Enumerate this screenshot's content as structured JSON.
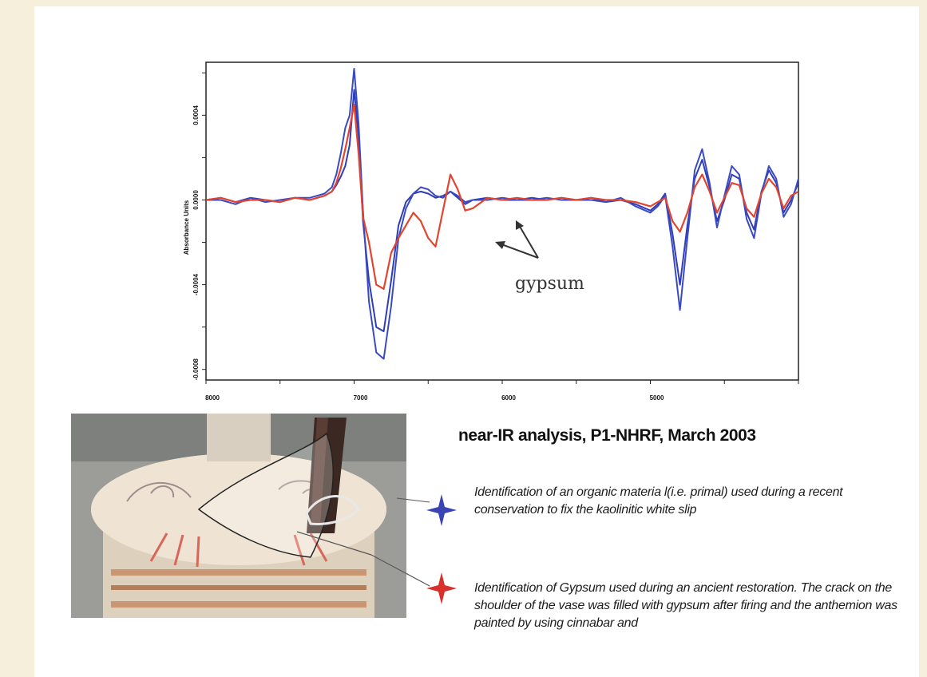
{
  "chart_data": {
    "type": "line",
    "title": "",
    "xlabel": "",
    "ylabel": "Absorbance Units",
    "xlim": [
      8000,
      4000
    ],
    "ylim": [
      -0.00085,
      0.00065
    ],
    "xticks": [
      "8000",
      "7000",
      "6000",
      "5000"
    ],
    "yticks": [
      "0.0004",
      "0.0000",
      "-0.0004",
      "-0.0008"
    ],
    "x": [
      8000,
      7900,
      7800,
      7700,
      7600,
      7500,
      7400,
      7300,
      7200,
      7150,
      7120,
      7090,
      7060,
      7030,
      7000,
      6970,
      6940,
      6900,
      6850,
      6800,
      6750,
      6700,
      6650,
      6600,
      6550,
      6500,
      6450,
      6400,
      6350,
      6300,
      6250,
      6200,
      6100,
      6000,
      5900,
      5800,
      5700,
      5600,
      5500,
      5400,
      5300,
      5200,
      5100,
      5000,
      4950,
      4900,
      4850,
      4800,
      4750,
      4700,
      4650,
      4600,
      4550,
      4500,
      4450,
      4400,
      4350,
      4300,
      4250,
      4200,
      4150,
      4100,
      4050,
      4000
    ],
    "series": [
      {
        "color": "#2f3db8",
        "values": [
          0.0,
          1e-05,
          -1e-05,
          1e-05,
          0.0,
          -1e-05,
          1e-05,
          0.0,
          2e-05,
          4e-05,
          7e-05,
          0.00011,
          0.00016,
          0.00026,
          0.00052,
          0.0003,
          -0.0001,
          -0.00038,
          -0.0006,
          -0.00062,
          -0.00038,
          -0.00012,
          -1e-05,
          3e-05,
          4e-05,
          3e-05,
          1e-05,
          2e-05,
          4e-05,
          1e-05,
          -2e-05,
          0.0,
          1e-05,
          0.0,
          0.0,
          1e-05,
          0.0,
          1e-05,
          0.0,
          1e-05,
          -1e-05,
          0.0,
          -2e-05,
          -5e-05,
          -2e-05,
          3e-05,
          -0.00016,
          -0.0004,
          -0.00012,
          0.0001,
          0.00019,
          6e-05,
          -0.0001,
          0.0,
          0.00012,
          0.0001,
          -6e-05,
          -0.00014,
          4e-05,
          0.00014,
          8e-05,
          -6e-05,
          0.0,
          8e-05
        ]
      },
      {
        "color": "#3a4ac2",
        "values": [
          0.0,
          0.0,
          -2e-05,
          1e-05,
          -1e-05,
          0.0,
          1e-05,
          1e-05,
          3e-05,
          6e-05,
          0.00012,
          0.00022,
          0.00034,
          0.0004,
          0.00062,
          0.00036,
          -5e-05,
          -0.00048,
          -0.00072,
          -0.00075,
          -0.0005,
          -0.00018,
          -4e-05,
          3e-05,
          6e-05,
          5e-05,
          2e-05,
          1e-05,
          4e-05,
          2e-05,
          -1e-05,
          0.0,
          0.0,
          1e-05,
          0.0,
          0.0,
          1e-05,
          0.0,
          0.0,
          0.0,
          -1e-05,
          1e-05,
          -3e-05,
          -6e-05,
          -3e-05,
          2e-05,
          -0.00022,
          -0.00052,
          -0.00018,
          0.00014,
          0.00024,
          8e-05,
          -0.00013,
          2e-05,
          0.00016,
          0.00012,
          -9e-05,
          -0.00018,
          3e-05,
          0.00016,
          0.0001,
          -8e-05,
          -2e-05,
          0.0001
        ]
      },
      {
        "color": "#e2452f",
        "values": [
          0.0,
          1e-05,
          -1e-05,
          0.0,
          0.0,
          -1e-05,
          1e-05,
          0.0,
          2e-05,
          4e-05,
          8e-05,
          0.00015,
          0.00024,
          0.00034,
          0.00045,
          0.00022,
          -8e-05,
          -0.0002,
          -0.0004,
          -0.00042,
          -0.00025,
          -0.00018,
          -0.00012,
          -6e-05,
          -0.0001,
          -0.00018,
          -0.00022,
          -5e-05,
          0.00012,
          5e-05,
          -5e-05,
          -4e-05,
          1e-05,
          0.0,
          1e-05,
          0.0,
          0.0,
          1e-05,
          0.0,
          1e-05,
          0.0,
          0.0,
          -1e-05,
          -3e-05,
          -1e-05,
          1e-05,
          -0.0001,
          -0.00015,
          -6e-05,
          6e-05,
          0.00012,
          4e-05,
          -6e-05,
          1e-05,
          8e-05,
          7e-05,
          -4e-05,
          -8e-05,
          3e-05,
          0.0001,
          6e-05,
          -4e-05,
          2e-05,
          4e-05
        ]
      }
    ],
    "annotations": [
      "gypsum"
    ]
  },
  "caption": {
    "title": "near-IR analysis, P1-NHRF, March 2003",
    "note_blue": "Identification of an organic materia l(i.e. primal) used during a recent conservation to fix the kaolinitic white slip",
    "note_red": "Identification of Gypsum used during an ancient restoration. The crack on the shoulder of the vase was filled with gypsum after firing and the anthemion was painted by using cinnabar and"
  },
  "colors": {
    "blue_marker": "#3a44b5",
    "red_marker": "#d9302b",
    "background": "#f6efdb"
  },
  "icons": {
    "blue": "four-point-star-icon",
    "red": "four-point-star-icon"
  }
}
